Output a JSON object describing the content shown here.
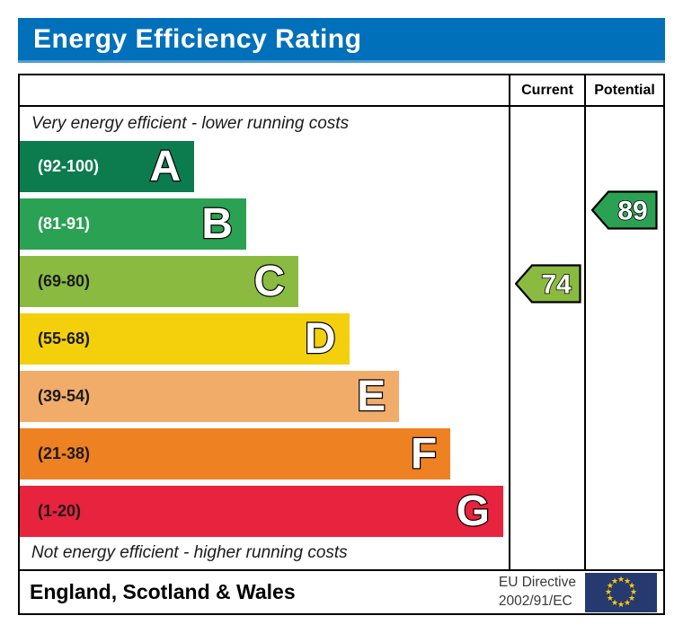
{
  "title": "Energy Efficiency Rating",
  "colors": {
    "title_bar": "#0070BA",
    "title_bar_edge": "#4E9CD2",
    "border": "#000000"
  },
  "header": {
    "current_label": "Current",
    "potential_label": "Potential"
  },
  "chart_data": {
    "type": "bar",
    "subtype": "energy-efficiency-rating",
    "title": "Energy Efficiency Rating",
    "top_note": "Very energy efficient - lower running costs",
    "bottom_note": "Not energy efficient - higher running costs",
    "scale": [
      1,
      100
    ],
    "bands": [
      {
        "letter": "A",
        "range": "(92-100)",
        "color": "#0C7C4F",
        "label_color": "#ffffff",
        "width_pct": 35.7
      },
      {
        "letter": "B",
        "range": "(81-91)",
        "color": "#2BA153",
        "label_color": "#ffffff",
        "width_pct": 46.3
      },
      {
        "letter": "C",
        "range": "(69-80)",
        "color": "#8ABB40",
        "label_color": "#1a1a1a",
        "width_pct": 57.0
      },
      {
        "letter": "D",
        "range": "(55-68)",
        "color": "#F4D00C",
        "label_color": "#1a1a1a",
        "width_pct": 67.4
      },
      {
        "letter": "E",
        "range": "(39-54)",
        "color": "#F2AC6A",
        "label_color": "#1a1a1a",
        "width_pct": 77.6
      },
      {
        "letter": "F",
        "range": "(21-38)",
        "color": "#EE8122",
        "label_color": "#1a1a1a",
        "width_pct": 88.1
      },
      {
        "letter": "G",
        "range": "(1-20)",
        "color": "#E8233D",
        "label_color": "#1a1a1a",
        "width_pct": 98.9
      }
    ],
    "current": {
      "value": 74,
      "band": "C",
      "color": "#8ABB40"
    },
    "potential": {
      "value": 89,
      "band": "B",
      "color": "#2BA153"
    }
  },
  "footer": {
    "region": "England, Scotland & Wales",
    "directive_line1": "EU Directive",
    "directive_line2": "2002/91/EC",
    "eu_flag": {
      "background": "#263A6F",
      "star_color": "#FFCC00"
    }
  }
}
